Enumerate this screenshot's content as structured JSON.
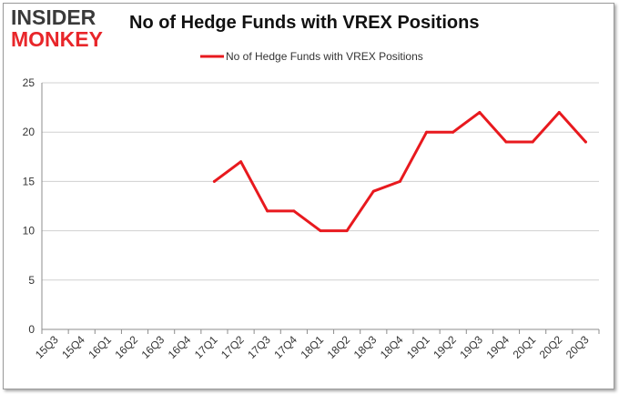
{
  "brand": {
    "line1": "INSIDER",
    "line2": "MONKEY",
    "line1_color": "#3a3a3a",
    "line2_color": "#e8262a"
  },
  "chart_data": {
    "type": "line",
    "title": "No of Hedge Funds with VREX Positions",
    "xlabel": "",
    "ylabel": "",
    "legend_position": "top-center",
    "grid": true,
    "ylim": [
      0,
      25
    ],
    "yticks": [
      0,
      5,
      10,
      15,
      20,
      25
    ],
    "categories": [
      "15Q3",
      "15Q4",
      "16Q1",
      "16Q2",
      "16Q3",
      "16Q4",
      "17Q1",
      "17Q2",
      "17Q3",
      "17Q4",
      "18Q1",
      "18Q2",
      "18Q3",
      "18Q4",
      "19Q1",
      "19Q2",
      "19Q3",
      "19Q4",
      "20Q1",
      "20Q2",
      "20Q3"
    ],
    "series": [
      {
        "name": "No of Hedge Funds with VREX Positions",
        "color": "#e8191e",
        "values": [
          null,
          null,
          null,
          null,
          null,
          null,
          15,
          17,
          12,
          12,
          10,
          10,
          14,
          15,
          20,
          20,
          22,
          19,
          19,
          22,
          19
        ]
      }
    ]
  }
}
